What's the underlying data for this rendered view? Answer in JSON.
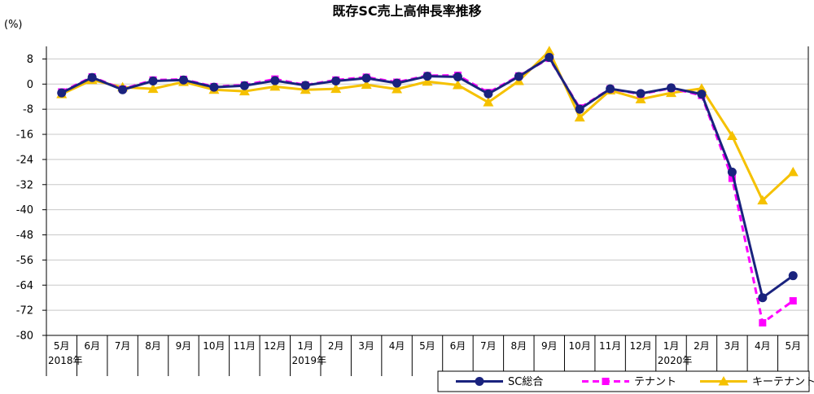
{
  "chart_data": {
    "type": "line",
    "title": "既存SC売上高伸長率推移",
    "ylabel": "(%)",
    "xlabel": "",
    "ylim": [
      -80,
      12
    ],
    "yticks": [
      8,
      0,
      -8,
      -16,
      -24,
      -32,
      -40,
      -48,
      -56,
      -64,
      -72,
      -80
    ],
    "grid": true,
    "legend_position": "bottom-right",
    "categories": [
      "5月",
      "6月",
      "7月",
      "8月",
      "9月",
      "10月",
      "11月",
      "12月",
      "1月",
      "2月",
      "3月",
      "4月",
      "5月",
      "6月",
      "7月",
      "8月",
      "9月",
      "10月",
      "11月",
      "12月",
      "1月",
      "2月",
      "3月",
      "4月",
      "5月"
    ],
    "year_labels": [
      {
        "index": 0,
        "label": "2018年"
      },
      {
        "index": 8,
        "label": "2019年"
      },
      {
        "index": 20,
        "label": "2020年"
      }
    ],
    "series": [
      {
        "name": "SC総合",
        "color": "#1a237e",
        "line_style": "solid",
        "marker": "circle",
        "values": [
          -2.8,
          2.1,
          -1.8,
          1.0,
          1.3,
          -1.0,
          -0.5,
          1.1,
          -0.4,
          1.0,
          1.9,
          0.3,
          2.5,
          2.3,
          -3.1,
          2.4,
          8.5,
          -8.0,
          -1.5,
          -3.0,
          -1.2,
          -3.2,
          -28.0,
          -68.0,
          -61.0
        ]
      },
      {
        "name": "テナント",
        "color": "#ff00ff",
        "line_style": "dashed",
        "marker": "square",
        "values": [
          -2.5,
          2.3,
          -1.6,
          1.3,
          1.5,
          -0.8,
          -0.3,
          1.6,
          -0.3,
          1.3,
          2.2,
          0.6,
          2.7,
          2.8,
          -2.7,
          2.6,
          8.2,
          -7.6,
          -1.5,
          -3.2,
          -1.3,
          -3.6,
          -30.0,
          -76.0,
          -69.0
        ]
      },
      {
        "name": "キーテナント",
        "color": "#f5c100",
        "line_style": "solid",
        "marker": "triangle",
        "values": [
          -3.2,
          1.3,
          -1.0,
          -1.5,
          0.7,
          -1.8,
          -2.3,
          -0.8,
          -1.8,
          -1.5,
          -0.2,
          -1.6,
          0.8,
          -0.3,
          -5.8,
          1.0,
          10.5,
          -10.6,
          -2.0,
          -4.8,
          -2.8,
          -1.4,
          -16.5,
          -37.0,
          -28.0
        ]
      }
    ]
  }
}
